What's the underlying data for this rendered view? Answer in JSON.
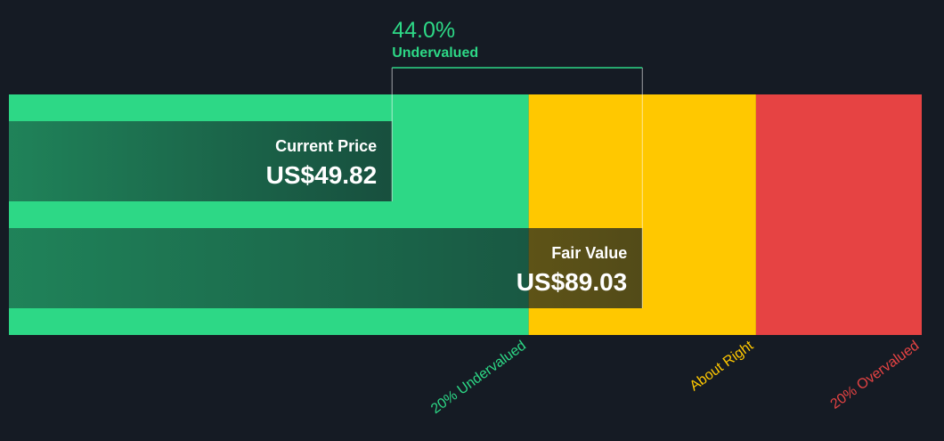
{
  "chart_data": {
    "type": "valuation",
    "xlim": [
      -10.2,
      132.8
    ],
    "current_price": {
      "label": "Current Price",
      "value": 49.82,
      "value_label": "US$49.82"
    },
    "fair_value": {
      "label": "Fair Value",
      "value": 89.03,
      "value_label": "US$89.03"
    },
    "discount": {
      "value": 44.0,
      "value_label": "44.0%",
      "label": "Undervalued",
      "color": "#2dd886"
    },
    "zones": [
      {
        "label": "20% Undervalued",
        "color": "#2dd886"
      },
      {
        "label": "About Right",
        "color": "#ffc800"
      },
      {
        "label": "20% Overvalued",
        "color": "#e64343"
      }
    ]
  }
}
